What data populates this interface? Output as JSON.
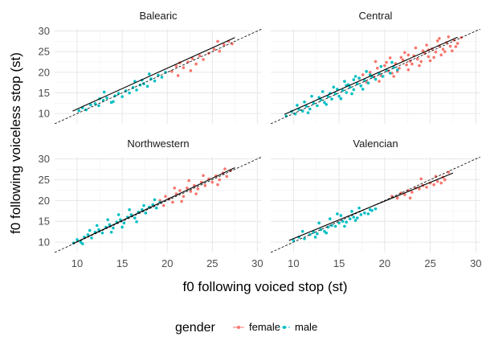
{
  "chart_data": {
    "type": "scatter",
    "facet_by": "dialect",
    "xlabel": "f0 following voiced stop (st)",
    "ylabel": "f0 following voiceless stop (st)",
    "xlim": [
      7.5,
      30.5
    ],
    "ylim": [
      7.5,
      30.5
    ],
    "x_ticks": [
      10,
      15,
      20,
      25,
      30
    ],
    "y_ticks": [
      10,
      15,
      20,
      25,
      30
    ],
    "grid": true,
    "legend": {
      "title": "gender",
      "position": "bottom",
      "entries": [
        {
          "label": "female",
          "color": "#F8766D"
        },
        {
          "label": "male",
          "color": "#00BFC4"
        }
      ]
    },
    "reference_line": {
      "description": "identity line y = x",
      "style": "dashed"
    },
    "facets": [
      {
        "name": "Balearic",
        "fit": {
          "x": [
            9.5,
            27.5
          ],
          "y": [
            10.6,
            28.4
          ]
        },
        "female": [
          [
            20.5,
            20.2
          ],
          [
            21,
            21.5
          ],
          [
            21.4,
            22.3
          ],
          [
            21.8,
            21.1
          ],
          [
            22.3,
            22.5
          ],
          [
            22.8,
            23.3
          ],
          [
            23.2,
            22.0
          ],
          [
            23.6,
            24.0
          ],
          [
            24.0,
            23.1
          ],
          [
            24.6,
            24.6
          ],
          [
            25.2,
            25.6
          ],
          [
            25.8,
            25.1
          ],
          [
            26.3,
            26.7
          ],
          [
            26.8,
            27.5
          ],
          [
            27.2,
            26.9
          ],
          [
            21.2,
            19.2
          ],
          [
            22.6,
            20.4
          ],
          [
            25.6,
            27.5
          ]
        ],
        "male": [
          [
            10.2,
            10.7
          ],
          [
            10.6,
            11.4
          ],
          [
            11.0,
            10.9
          ],
          [
            11.5,
            12.1
          ],
          [
            12.0,
            12.4
          ],
          [
            12.4,
            11.9
          ],
          [
            12.9,
            13.2
          ],
          [
            13.3,
            13.8
          ],
          [
            13.8,
            12.7
          ],
          [
            14.2,
            14.3
          ],
          [
            14.6,
            14.9
          ],
          [
            15.0,
            14.1
          ],
          [
            15.4,
            15.5
          ],
          [
            15.8,
            15.0
          ],
          [
            16.2,
            16.3
          ],
          [
            16.6,
            15.7
          ],
          [
            17.0,
            16.9
          ],
          [
            17.4,
            17.2
          ],
          [
            17.8,
            16.6
          ],
          [
            18.2,
            18.4
          ],
          [
            18.6,
            17.9
          ],
          [
            19.0,
            19.3
          ],
          [
            19.4,
            18.8
          ],
          [
            19.8,
            20.0
          ],
          [
            13.0,
            15.2
          ],
          [
            16.4,
            17.8
          ],
          [
            18.0,
            19.6
          ],
          [
            14.0,
            12.9
          ],
          [
            12.5,
            13.6
          ],
          [
            17.2,
            18.1
          ]
        ]
      },
      {
        "name": "Central",
        "fit": {
          "x": [
            9.0,
            28.0
          ],
          "y": [
            9.8,
            28.5
          ]
        },
        "female": [
          [
            17.2,
            18.5
          ],
          [
            17.6,
            19.4
          ],
          [
            18.0,
            17.6
          ],
          [
            18.4,
            20.0
          ],
          [
            18.8,
            18.9
          ],
          [
            19.2,
            21.0
          ],
          [
            19.6,
            19.2
          ],
          [
            20.0,
            21.6
          ],
          [
            20.4,
            20.3
          ],
          [
            20.8,
            19.8
          ],
          [
            21.2,
            22.1
          ],
          [
            21.6,
            21.0
          ],
          [
            22.0,
            23.0
          ],
          [
            22.4,
            21.8
          ],
          [
            22.8,
            22.7
          ],
          [
            23.2,
            24.0
          ],
          [
            23.6,
            23.2
          ],
          [
            24.0,
            22.6
          ],
          [
            24.4,
            24.6
          ],
          [
            24.8,
            23.8
          ],
          [
            25.2,
            25.7
          ],
          [
            25.6,
            24.9
          ],
          [
            26.0,
            26.4
          ],
          [
            26.4,
            25.6
          ],
          [
            26.8,
            27.2
          ],
          [
            27.2,
            26.3
          ],
          [
            27.6,
            27.8
          ],
          [
            28.0,
            27.0
          ],
          [
            28.4,
            28.4
          ],
          [
            19.0,
            22.6
          ],
          [
            20.6,
            23.5
          ],
          [
            22.2,
            24.8
          ],
          [
            23.4,
            25.9
          ],
          [
            24.6,
            26.6
          ],
          [
            25.8,
            27.6
          ],
          [
            21.0,
            19.0
          ],
          [
            22.6,
            20.6
          ],
          [
            23.8,
            21.6
          ],
          [
            25.0,
            22.8
          ],
          [
            26.2,
            24.2
          ],
          [
            27.4,
            25.2
          ],
          [
            20.2,
            22.4
          ],
          [
            21.8,
            23.6
          ],
          [
            23.0,
            22.0
          ],
          [
            24.2,
            25.2
          ],
          [
            25.4,
            23.6
          ],
          [
            26.6,
            25.0
          ],
          [
            27.8,
            26.2
          ],
          [
            19.4,
            17.8
          ],
          [
            21.4,
            20.2
          ],
          [
            22.6,
            24.2
          ],
          [
            24.8,
            25.4
          ],
          [
            26.0,
            28.2
          ],
          [
            27.0,
            28.6
          ]
        ],
        "male": [
          [
            9.2,
            9.4
          ],
          [
            9.8,
            10.5
          ],
          [
            10.2,
            9.9
          ],
          [
            10.6,
            11.0
          ],
          [
            11.0,
            10.6
          ],
          [
            11.4,
            11.8
          ],
          [
            11.8,
            11.1
          ],
          [
            12.2,
            12.5
          ],
          [
            12.6,
            11.9
          ],
          [
            13.0,
            13.3
          ],
          [
            13.4,
            12.7
          ],
          [
            13.8,
            14.1
          ],
          [
            14.2,
            13.5
          ],
          [
            14.6,
            14.8
          ],
          [
            15.0,
            14.2
          ],
          [
            15.4,
            15.6
          ],
          [
            15.8,
            15.1
          ],
          [
            16.2,
            16.4
          ],
          [
            16.6,
            15.8
          ],
          [
            17.0,
            17.2
          ],
          [
            17.4,
            16.7
          ],
          [
            17.8,
            18.0
          ],
          [
            18.2,
            17.4
          ],
          [
            18.6,
            18.9
          ],
          [
            19.0,
            18.3
          ],
          [
            19.4,
            19.7
          ],
          [
            19.8,
            19.0
          ],
          [
            20.2,
            20.5
          ],
          [
            20.6,
            19.8
          ],
          [
            21.0,
            21.2
          ],
          [
            21.4,
            20.6
          ],
          [
            12.0,
            14.2
          ],
          [
            13.2,
            15.3
          ],
          [
            14.4,
            16.4
          ],
          [
            15.6,
            17.8
          ],
          [
            16.8,
            19.0
          ],
          [
            18.0,
            20.2
          ],
          [
            11.2,
            12.8
          ],
          [
            13.6,
            12.2
          ],
          [
            15.2,
            13.6
          ],
          [
            16.4,
            14.8
          ],
          [
            17.6,
            15.9
          ],
          [
            12.8,
            13.9
          ],
          [
            14.8,
            15.9
          ],
          [
            16.0,
            17.0
          ],
          [
            17.2,
            18.6
          ],
          [
            10.4,
            12.0
          ],
          [
            11.6,
            10.2
          ],
          [
            14.0,
            14.9
          ],
          [
            15.8,
            16.8
          ],
          [
            18.4,
            19.4
          ],
          [
            19.6,
            21.4
          ],
          [
            20.8,
            22.4
          ],
          [
            16.6,
            18.2
          ]
        ]
      },
      {
        "name": "Northwestern",
        "fit": {
          "x": [
            9.5,
            27.5
          ],
          "y": [
            9.6,
            27.9
          ]
        },
        "female": [
          [
            19.2,
            20.0
          ],
          [
            19.8,
            21.0
          ],
          [
            20.2,
            20.4
          ],
          [
            20.6,
            19.6
          ],
          [
            21.0,
            21.6
          ],
          [
            21.4,
            22.4
          ],
          [
            21.8,
            21.0
          ],
          [
            22.2,
            23.0
          ],
          [
            22.6,
            22.2
          ],
          [
            23.0,
            23.6
          ],
          [
            23.4,
            22.8
          ],
          [
            23.8,
            24.4
          ],
          [
            24.2,
            23.6
          ],
          [
            24.6,
            25.2
          ],
          [
            25.0,
            24.4
          ],
          [
            25.4,
            25.9
          ],
          [
            25.8,
            25.0
          ],
          [
            26.2,
            26.6
          ],
          [
            26.6,
            25.8
          ],
          [
            27.0,
            27.2
          ],
          [
            20.8,
            23.0
          ],
          [
            22.4,
            24.8
          ],
          [
            24.0,
            26.0
          ],
          [
            21.6,
            19.8
          ],
          [
            23.2,
            21.6
          ],
          [
            25.6,
            23.8
          ],
          [
            26.4,
            27.6
          ],
          [
            19.6,
            18.8
          ]
        ],
        "male": [
          [
            9.6,
            9.8
          ],
          [
            10.0,
            10.6
          ],
          [
            10.4,
            10.0
          ],
          [
            10.8,
            11.2
          ],
          [
            11.2,
            11.8
          ],
          [
            11.6,
            11.0
          ],
          [
            12.0,
            12.4
          ],
          [
            12.4,
            13.0
          ],
          [
            12.8,
            12.2
          ],
          [
            13.2,
            13.6
          ],
          [
            13.6,
            14.2
          ],
          [
            14.0,
            13.4
          ],
          [
            14.4,
            14.8
          ],
          [
            14.8,
            15.4
          ],
          [
            15.2,
            14.6
          ],
          [
            15.6,
            16.0
          ],
          [
            16.0,
            16.6
          ],
          [
            16.4,
            15.8
          ],
          [
            16.8,
            17.2
          ],
          [
            17.2,
            17.8
          ],
          [
            17.6,
            17.0
          ],
          [
            18.0,
            18.4
          ],
          [
            18.4,
            19.0
          ],
          [
            18.8,
            18.2
          ],
          [
            19.2,
            19.6
          ],
          [
            12.2,
            14.0
          ],
          [
            13.4,
            15.4
          ],
          [
            14.6,
            16.6
          ],
          [
            15.8,
            17.8
          ],
          [
            13.8,
            12.4
          ],
          [
            15.0,
            13.6
          ],
          [
            16.6,
            14.9
          ],
          [
            11.4,
            12.8
          ],
          [
            17.4,
            18.8
          ],
          [
            18.6,
            20.2
          ],
          [
            10.6,
            9.6
          ]
        ]
      },
      {
        "name": "Valencian",
        "fit": {
          "x": [
            9.5,
            27.5
          ],
          "y": [
            10.4,
            26.6
          ]
        },
        "female": [
          [
            20.8,
            21.0
          ],
          [
            21.4,
            20.6
          ],
          [
            21.8,
            21.8
          ],
          [
            22.2,
            21.4
          ],
          [
            22.6,
            22.4
          ],
          [
            23.0,
            22.0
          ],
          [
            23.4,
            23.0
          ],
          [
            23.8,
            22.8
          ],
          [
            24.2,
            23.6
          ],
          [
            24.6,
            23.2
          ],
          [
            25.0,
            24.2
          ],
          [
            25.4,
            23.8
          ],
          [
            25.8,
            24.6
          ],
          [
            26.2,
            24.2
          ],
          [
            26.6,
            25.0
          ],
          [
            27.0,
            26.8
          ],
          [
            24.0,
            25.2
          ],
          [
            22.8,
            20.6
          ],
          [
            25.6,
            25.8
          ],
          [
            26.4,
            25.6
          ]
        ],
        "male": [
          [
            10.0,
            10.4
          ],
          [
            10.6,
            11.2
          ],
          [
            11.2,
            10.8
          ],
          [
            11.8,
            11.8
          ],
          [
            12.2,
            12.4
          ],
          [
            12.6,
            12.0
          ],
          [
            13.0,
            13.0
          ],
          [
            13.4,
            12.6
          ],
          [
            13.8,
            13.6
          ],
          [
            14.2,
            14.0
          ],
          [
            14.6,
            13.8
          ],
          [
            15.0,
            14.6
          ],
          [
            15.4,
            15.0
          ],
          [
            15.8,
            14.8
          ],
          [
            16.2,
            15.6
          ],
          [
            16.6,
            16.0
          ],
          [
            17.0,
            15.8
          ],
          [
            17.4,
            16.6
          ],
          [
            17.8,
            17.0
          ],
          [
            18.2,
            16.8
          ],
          [
            18.6,
            17.6
          ],
          [
            19.0,
            18.0
          ],
          [
            12.8,
            14.6
          ],
          [
            14.0,
            15.6
          ],
          [
            15.2,
            16.4
          ],
          [
            16.4,
            17.4
          ],
          [
            13.6,
            12.2
          ],
          [
            15.6,
            13.8
          ],
          [
            11.0,
            12.6
          ],
          [
            17.2,
            18.2
          ],
          [
            14.8,
            16.8
          ],
          [
            16.8,
            15.2
          ],
          [
            12.4,
            11.2
          ],
          [
            18.4,
            17.8
          ]
        ]
      }
    ]
  }
}
